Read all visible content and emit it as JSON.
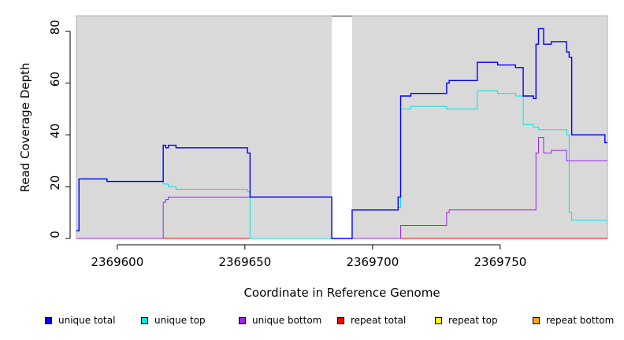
{
  "chart_data": {
    "type": "line",
    "step": true,
    "title": "",
    "xlabel": "Coordinate in Reference Genome",
    "ylabel": "Read Coverage Depth",
    "xlim": [
      2369584,
      2369792
    ],
    "ylim": [
      0,
      86
    ],
    "xticks": [
      2369600,
      2369650,
      2369700,
      2369750
    ],
    "xtick_labels": [
      "2369600",
      "2369650",
      "2369700",
      "2369750"
    ],
    "yticks": [
      0,
      20,
      40,
      60,
      80
    ],
    "ytick_labels": [
      "0",
      "20",
      "40",
      "60",
      "80"
    ],
    "background": "#d9d9d9",
    "gaps": [
      [
        2369684,
        2369692
      ]
    ],
    "legend_position": "bottom",
    "series": [
      {
        "name": "unique total",
        "color": "#0000ff",
        "x": [
          2369584,
          2369585,
          2369596,
          2369618,
          2369619,
          2369620,
          2369623,
          2369651,
          2369652,
          2369684,
          2369692,
          2369710,
          2369711,
          2369715,
          2369729,
          2369730,
          2369741,
          2369749,
          2369756,
          2369759,
          2369763,
          2369764,
          2369765,
          2369767,
          2369770,
          2369776,
          2369777,
          2369778,
          2369791
        ],
        "y": [
          3,
          23,
          22,
          36,
          35,
          36,
          35,
          33,
          16,
          0,
          11,
          16,
          55,
          56,
          60,
          61,
          68,
          67,
          66,
          55,
          54,
          75,
          81,
          75,
          76,
          72,
          70,
          40,
          37
        ]
      },
      {
        "name": "unique top",
        "color": "#00e5e5",
        "x": [
          2369584,
          2369585,
          2369596,
          2369618,
          2369620,
          2369623,
          2369651,
          2369652,
          2369684,
          2369692,
          2369710,
          2369711,
          2369715,
          2369729,
          2369741,
          2369749,
          2369756,
          2369759,
          2369763,
          2369765,
          2369776,
          2369777,
          2369778
        ],
        "y": [
          3,
          23,
          22,
          21,
          20,
          19,
          18,
          0,
          0,
          11,
          12,
          50,
          51,
          50,
          57,
          56,
          55,
          44,
          43,
          42,
          40,
          10,
          7
        ]
      },
      {
        "name": "unique bottom",
        "color": "#a020f0",
        "x": [
          2369584,
          2369618,
          2369619,
          2369620,
          2369684,
          2369692,
          2369711,
          2369729,
          2369730,
          2369764,
          2369765,
          2369767,
          2369770,
          2369776
        ],
        "y": [
          0,
          14,
          15,
          16,
          0,
          0,
          5,
          10,
          11,
          33,
          39,
          33,
          34,
          30
        ]
      },
      {
        "name": "repeat total",
        "color": "#ff0000",
        "x": [
          2369584
        ],
        "y": [
          0
        ]
      },
      {
        "name": "repeat top",
        "color": "#ffff00",
        "x": [
          2369584
        ],
        "y": [
          0
        ]
      },
      {
        "name": "repeat bottom",
        "color": "#ffa500",
        "x": [
          2369584
        ],
        "y": [
          0
        ]
      }
    ]
  }
}
